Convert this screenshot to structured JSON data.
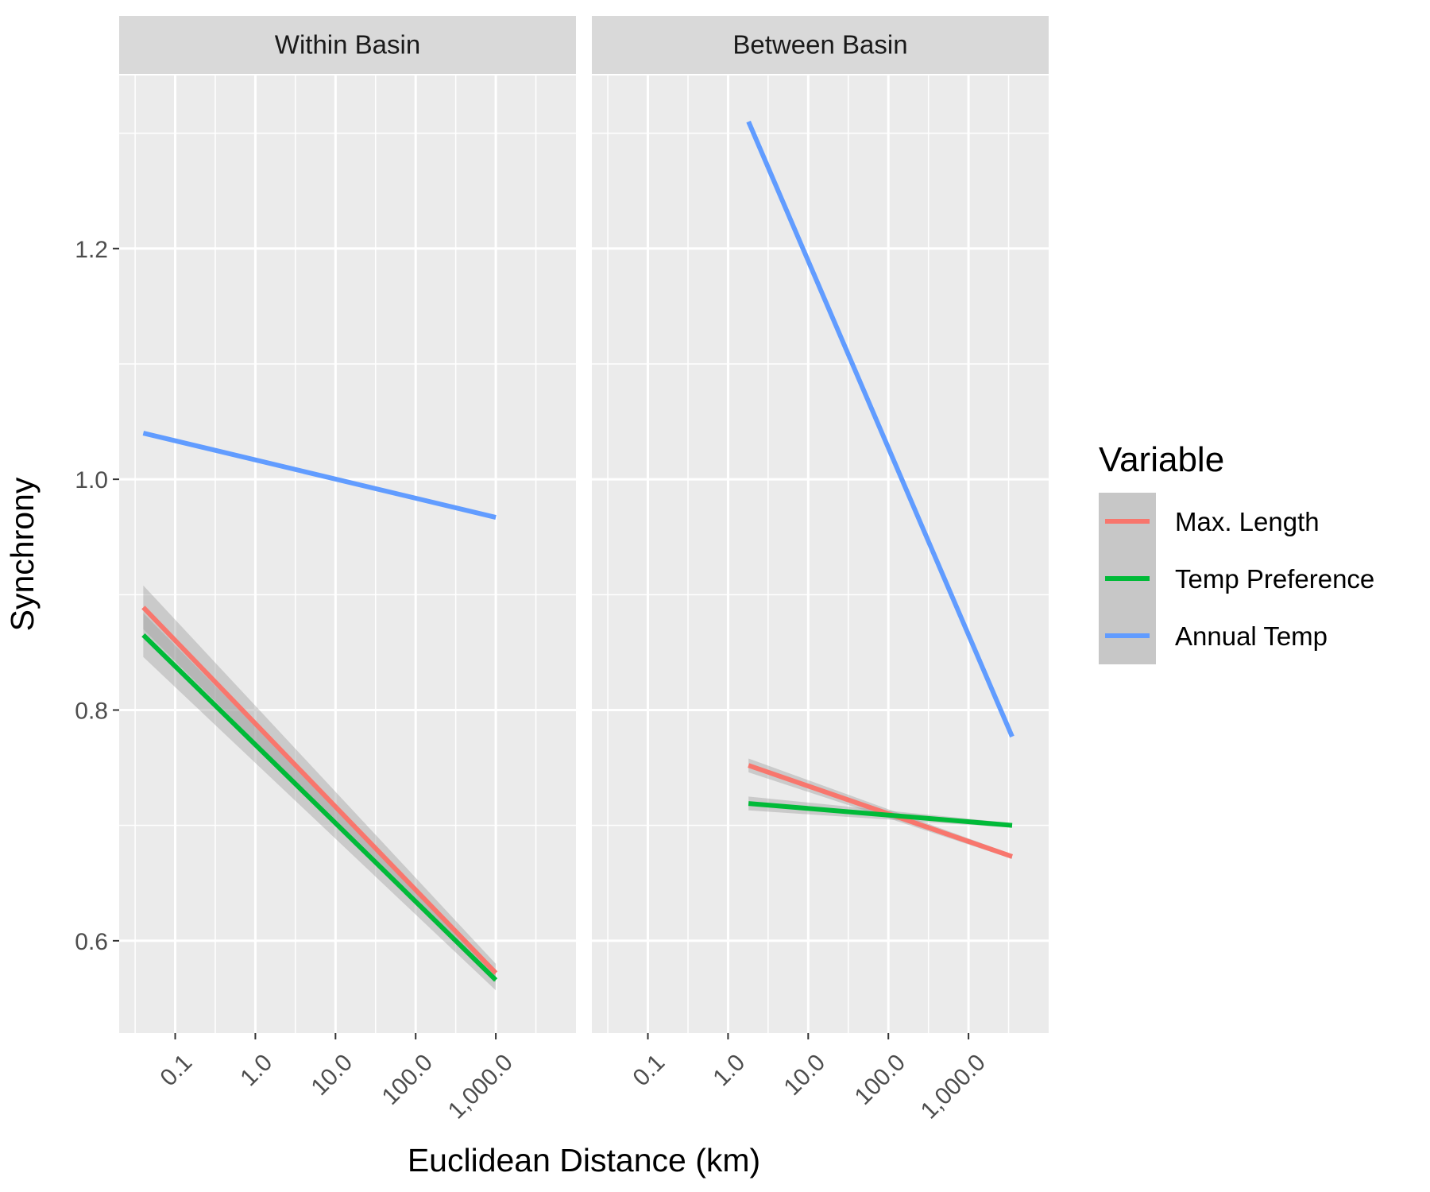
{
  "chart_data": {
    "type": "line",
    "xlabel": "Euclidean Distance (km)",
    "ylabel": "Synchrony",
    "x_scale": "log10",
    "x_ticks": [
      0.1,
      1,
      10,
      100,
      1000
    ],
    "x_tick_labels": [
      "0.1",
      "1.0",
      "10.0",
      "100.0",
      "1,000.0"
    ],
    "y_ticks": [
      0.6,
      0.8,
      1.0,
      1.2
    ],
    "y_tick_labels": [
      "0.6",
      "0.8",
      "1.0",
      "1.2"
    ],
    "ylim": [
      0.52,
      1.35
    ],
    "grid": true,
    "legend": {
      "title": "Variable",
      "position": "right",
      "entries": [
        {
          "name": "Max. Length",
          "color": "#F8766D"
        },
        {
          "name": "Temp Preference",
          "color": "#00BA38"
        },
        {
          "name": "Annual Temp",
          "color": "#619CFF"
        }
      ]
    },
    "panels": [
      {
        "title": "Within Basin",
        "xlim": [
          0.02,
          10000
        ],
        "series": [
          {
            "name": "Max. Length",
            "color": "#F8766D",
            "x": [
              0.04,
              1000
            ],
            "y": [
              0.889,
              0.572
            ],
            "ci": [
              [
                0.908,
                0.87
              ],
              [
                0.58,
                0.564
              ]
            ]
          },
          {
            "name": "Temp Preference",
            "color": "#00BA38",
            "x": [
              0.04,
              1000
            ],
            "y": [
              0.865,
              0.566
            ],
            "ci": [
              [
                0.884,
                0.846
              ],
              [
                0.575,
                0.557
              ]
            ]
          },
          {
            "name": "Annual Temp",
            "color": "#619CFF",
            "x": [
              0.04,
              1000
            ],
            "y": [
              1.04,
              0.967
            ],
            "ci": null
          }
        ]
      },
      {
        "title": "Between Basin",
        "xlim": [
          0.02,
          10000
        ],
        "series": [
          {
            "name": "Max. Length",
            "color": "#F8766D",
            "x": [
              1.8,
              3500
            ],
            "y": [
              0.752,
              0.673
            ],
            "ci": [
              [
                0.758,
                0.746
              ],
              [
                0.675,
                0.671
              ]
            ]
          },
          {
            "name": "Temp Preference",
            "color": "#00BA38",
            "x": [
              1.8,
              3500
            ],
            "y": [
              0.719,
              0.7
            ],
            "ci": [
              [
                0.725,
                0.713
              ],
              [
                0.702,
                0.698
              ]
            ]
          },
          {
            "name": "Annual Temp",
            "color": "#619CFF",
            "x": [
              1.8,
              3500
            ],
            "y": [
              1.31,
              0.777
            ],
            "ci": null
          }
        ]
      }
    ]
  }
}
